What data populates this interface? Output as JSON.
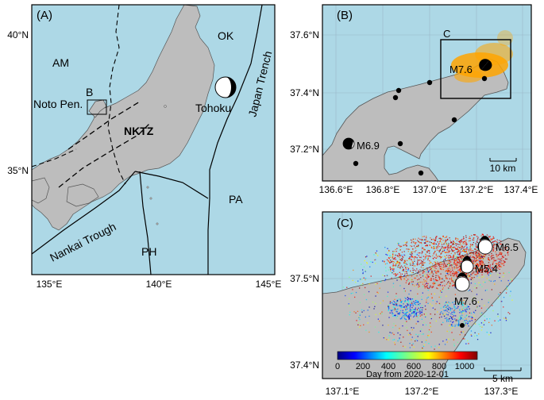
{
  "colors": {
    "sea": "#add8e6",
    "land": "#bdbdbd",
    "coast": "#555555",
    "frame": "#000000",
    "grid": "#9ab8c8",
    "seismicity_b": "#ffa500"
  },
  "panelA": {
    "label": "(A)",
    "ticks_x": [
      "135°E",
      "140°E",
      "145°E"
    ],
    "ticks_y": [
      "40°N",
      "35°N"
    ],
    "plates": {
      "am": "AM",
      "ok": "OK",
      "pa": "PA",
      "ph": "PH"
    },
    "features": {
      "noto": "Noto Pen.",
      "box": "B",
      "nktz": "NKTZ",
      "tohoku": "Tohoku",
      "japan_trench": "Japan Trench",
      "nankai": "Nankai Trough"
    }
  },
  "panelB": {
    "label": "(B)",
    "box": "C",
    "ticks_x": [
      "136.6°E",
      "136.8°E",
      "137.0°E",
      "137.2°E",
      "137.4°E"
    ],
    "ticks_y": [
      "37.6°N",
      "37.4°N",
      "37.2°N"
    ],
    "events": {
      "m76": "M7.6",
      "m69": "M6.9"
    },
    "scalebar": "10 km"
  },
  "panelC": {
    "label": "(C)",
    "ticks_x": [
      "137.1°E",
      "137.2°E",
      "137.3°E"
    ],
    "ticks_y": [
      "37.5°N",
      "37.4°N"
    ],
    "events": {
      "m65": "M6.5",
      "m54": "M5.4",
      "m76": "M7.6"
    },
    "colorbar": {
      "ticks": [
        "0",
        "200",
        "400",
        "600",
        "800",
        "1000"
      ],
      "title": "Day from 2020-12-01",
      "range": [
        0,
        1100
      ]
    },
    "scalebar": "5 km"
  }
}
